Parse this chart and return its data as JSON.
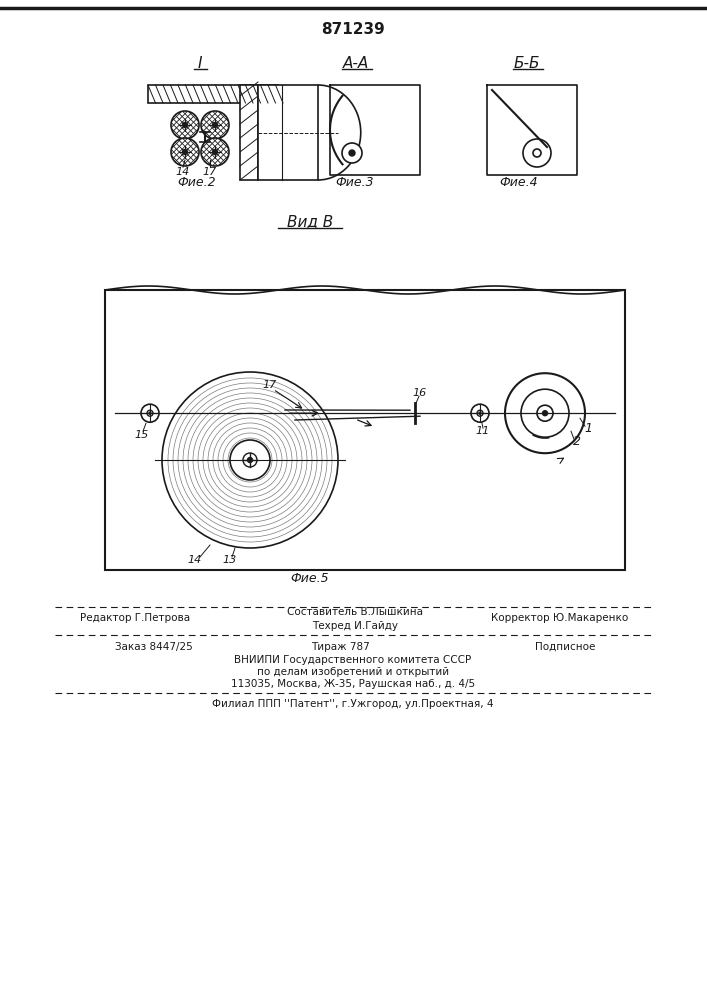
{
  "patent_number": "871239",
  "fig2_label": "Фие.2",
  "fig3_label": "Фие.3",
  "fig4_label": "Фие.4",
  "fig5_label": "Фие.5",
  "view_label": "Вид В",
  "section_I": "I",
  "section_AA": "А-А",
  "section_BB": "Б-Б",
  "editor_line": "Редактор Г.Петрова",
  "composer_line": "Составитель В.Лышкина",
  "techred_line": "Техред И.Гайду",
  "corrector_line": "Корректор Ю.Макаренко",
  "order_line": "Заказ 8447/25",
  "tiraz_line": "Тираж 787",
  "podpisnoe_line": "Подписное",
  "vnipi_line": "ВНИИПИ Государственного комитета СССР",
  "dela_line": "по делам изобретений и открытий",
  "address_line": "113035, Москва, Ж-35, Раушская наб., д. 4/5",
  "filial_line": "Филиал ППП ''Патент'', г.Ужгород, ул.Проектная, 4",
  "bg_color": "#ffffff",
  "line_color": "#1a1a1a",
  "text_color": "#1a1a1a"
}
